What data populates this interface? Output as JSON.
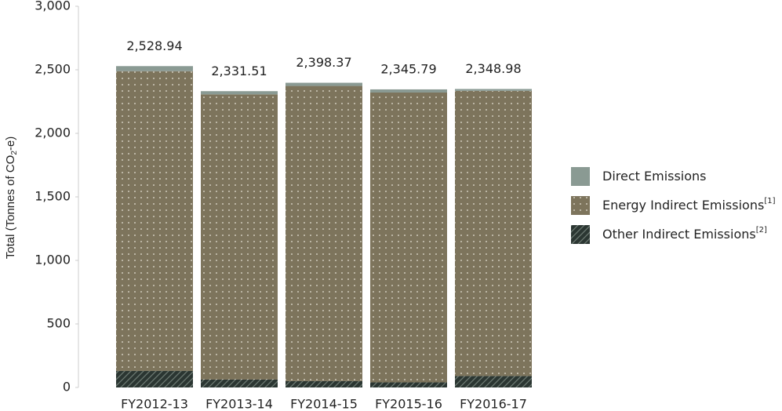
{
  "chart_data": {
    "type": "stacked_bar",
    "ylabel_parts": [
      "Total (Tonnes of CO",
      "2",
      "-e)"
    ],
    "categories": [
      "FY2012-13",
      "FY2013-14",
      "FY2014-15",
      "FY2015-16",
      "FY2016-17"
    ],
    "series": [
      {
        "name": "Other Indirect Emissions",
        "note": "[2]",
        "color": "#2b3632",
        "pattern": "hatch",
        "values": [
          130,
          62,
          50,
          40,
          90
        ]
      },
      {
        "name": "Energy Indirect Emissions",
        "note": "[1]",
        "color": "#7d745c",
        "pattern": "dots",
        "values": [
          2359,
          2245,
          2323,
          2281,
          2244
        ]
      },
      {
        "name": "Direct Emissions",
        "color": "#8a9a93",
        "pattern": "solid",
        "values": [
          40,
          25,
          25,
          25,
          15
        ]
      }
    ],
    "totals": [
      2528.94,
      2331.51,
      2398.37,
      2345.79,
      2348.98
    ],
    "total_labels": [
      "2,528.94",
      "2,331.51",
      "2,398.37",
      "2,345.79",
      "2,348.98"
    ],
    "ylim": [
      0,
      3000
    ],
    "yticks": [
      0,
      500,
      {
        "value": 1000,
        "label": "1,000"
      },
      {
        "value": 1500,
        "label": "1,500"
      },
      {
        "value": 2000,
        "label": "2,000"
      },
      {
        "value": 2500,
        "label": "2,500"
      },
      {
        "value": 3000,
        "label": "3,000"
      }
    ],
    "legend": "right"
  }
}
